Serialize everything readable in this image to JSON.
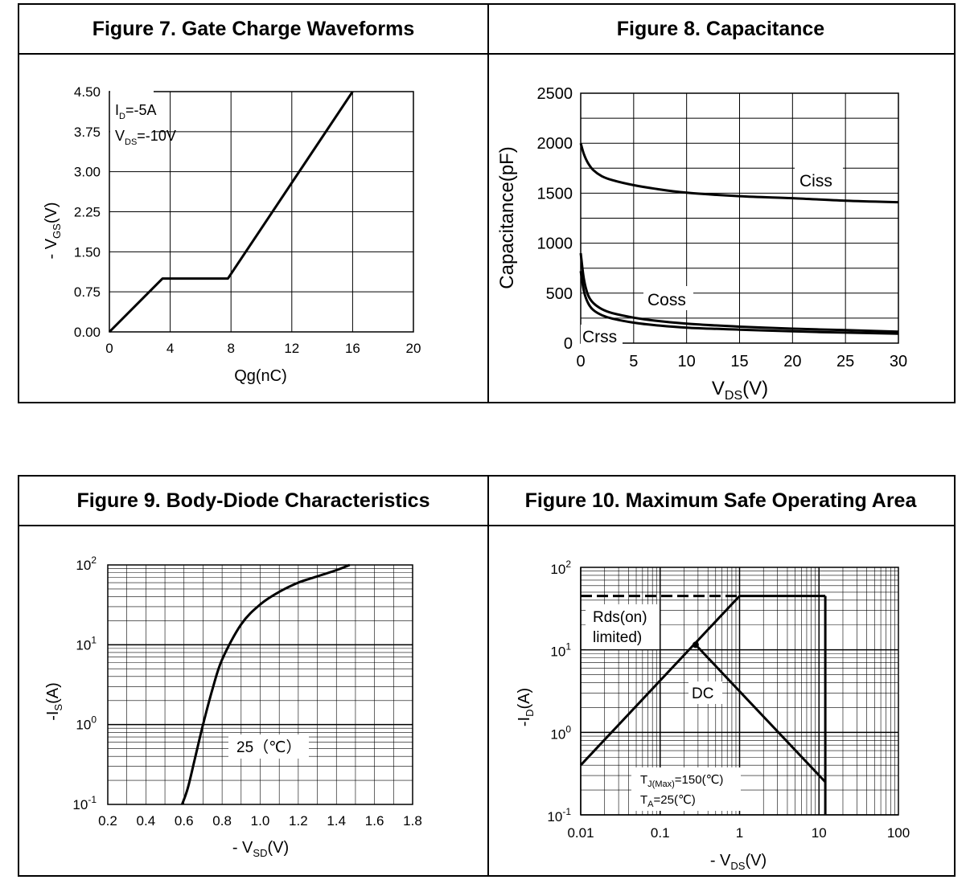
{
  "chart_data": [
    {
      "id": "fig7",
      "type": "line",
      "title": "Figure 7. Gate Charge Waveforms",
      "xlabel": "Qg(nC)",
      "ylabel_parts": [
        "- V",
        "GS",
        "(V)"
      ],
      "xlim": [
        0,
        20
      ],
      "ylim": [
        0,
        4.5
      ],
      "x_ticks": [
        "0",
        "4",
        "8",
        "12",
        "16",
        "20"
      ],
      "y_ticks": [
        "0.00",
        "0.75",
        "1.50",
        "2.25",
        "3.00",
        "3.75",
        "4.50"
      ],
      "annotations": [
        [
          "I",
          "D",
          "=-5A"
        ],
        [
          "V",
          "DS",
          "=-10V"
        ]
      ],
      "series": [
        {
          "name": "VGS",
          "x": [
            0,
            3.5,
            7.8,
            16
          ],
          "y": [
            0,
            1.0,
            1.0,
            4.5
          ]
        }
      ]
    },
    {
      "id": "fig8",
      "type": "line",
      "title": "Figure 8. Capacitance",
      "xlabel_parts": [
        "V",
        "DS",
        "(V)"
      ],
      "ylabel": "Capacitance(pF)",
      "xlim": [
        0,
        30
      ],
      "ylim": [
        0,
        2500
      ],
      "x_ticks": [
        "0",
        "5",
        "10",
        "15",
        "20",
        "25",
        "30"
      ],
      "y_ticks": [
        "0",
        "500",
        "1000",
        "1500",
        "2000",
        "2500"
      ],
      "series": [
        {
          "name": "Ciss",
          "x": [
            0,
            0.3,
            0.7,
            1.2,
            2,
            3,
            5,
            7,
            10,
            15,
            20,
            25,
            30
          ],
          "y": [
            2000,
            1890,
            1800,
            1730,
            1670,
            1630,
            1580,
            1545,
            1505,
            1470,
            1450,
            1425,
            1410
          ]
        },
        {
          "name": "Coss",
          "x": [
            0,
            0.3,
            0.7,
            1.2,
            2,
            3,
            5,
            7,
            10,
            15,
            20,
            25,
            30
          ],
          "y": [
            900,
            640,
            480,
            400,
            340,
            300,
            255,
            225,
            195,
            165,
            145,
            130,
            115
          ]
        },
        {
          "name": "Crss",
          "x": [
            0,
            0.3,
            0.7,
            1.2,
            2,
            3,
            5,
            7,
            10,
            15,
            20,
            25,
            30
          ],
          "y": [
            720,
            520,
            400,
            330,
            280,
            245,
            205,
            180,
            155,
            135,
            118,
            105,
            95
          ]
        }
      ]
    },
    {
      "id": "fig9",
      "type": "line",
      "title": "Figure 9. Body-Diode Characteristics",
      "xlabel_parts": [
        "- V",
        "SD",
        "(V)"
      ],
      "ylabel_parts": [
        "-I",
        "S",
        "(A)"
      ],
      "xlim": [
        0.2,
        1.8
      ],
      "ylim": [
        0.1,
        100
      ],
      "yscale": "log",
      "x_ticks": [
        "0.2",
        "0.4",
        "0.6",
        "0.8",
        "1.0",
        "1.2",
        "1.4",
        "1.6",
        "1.8"
      ],
      "y_ticks": [
        [
          "10",
          "-1"
        ],
        [
          "10",
          "0"
        ],
        [
          "10",
          "1"
        ],
        [
          "10",
          "2"
        ]
      ],
      "annotations": [
        "25（℃）"
      ],
      "series": [
        {
          "name": "25C",
          "x": [
            0.59,
            0.62,
            0.66,
            0.7,
            0.75,
            0.8,
            0.9,
            1.0,
            1.1,
            1.2,
            1.3,
            1.4,
            1.47
          ],
          "y": [
            0.1,
            0.16,
            0.4,
            1.0,
            2.8,
            6.5,
            18,
            32,
            46,
            60,
            72,
            86,
            100
          ]
        }
      ]
    },
    {
      "id": "fig10",
      "type": "line",
      "title": "Figure 10. Maximum Safe Operating Area",
      "xlabel_parts": [
        "- V",
        "DS",
        "(V)"
      ],
      "ylabel_parts": [
        "-I",
        "D",
        "(A)"
      ],
      "xscale": "log",
      "yscale": "log",
      "xlim": [
        0.01,
        100
      ],
      "ylim": [
        0.1,
        100
      ],
      "x_ticks": [
        "0.01",
        "0.1",
        "1",
        "10",
        "100"
      ],
      "y_ticks": [
        [
          "10",
          "-1"
        ],
        [
          "10",
          "0"
        ],
        [
          "10",
          "1"
        ],
        [
          "10",
          "2"
        ]
      ],
      "annotations": [
        "Rds(on)",
        "limited)",
        "DC",
        [
          "T",
          "J(Max)",
          "=150(℃)"
        ],
        [
          "T",
          "A",
          "=25(℃)"
        ]
      ],
      "series": [
        {
          "name": "Rds(on) limit",
          "x": [
            0.01,
            1.0
          ],
          "y": [
            0.4,
            45
          ]
        },
        {
          "name": "Current limit",
          "x": [
            1.0,
            12
          ],
          "y": [
            45,
            45
          ]
        },
        {
          "name": "DC",
          "x": [
            0.28,
            12
          ],
          "y": [
            11.5,
            0.25
          ]
        },
        {
          "name": "Vmax",
          "x": [
            12,
            12
          ],
          "y": [
            0.1,
            45
          ]
        },
        {
          "name": "Dashed current limit",
          "style": "dashed",
          "x": [
            0.01,
            1.0
          ],
          "y": [
            45,
            45
          ]
        }
      ]
    }
  ]
}
